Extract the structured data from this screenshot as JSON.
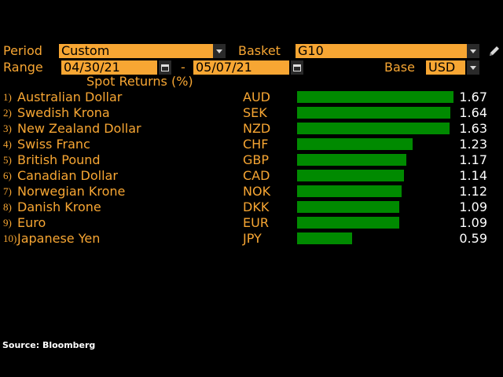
{
  "controls": {
    "period_label": "Period",
    "period_value": "Custom",
    "basket_label": "Basket",
    "basket_value": "G10",
    "range_label": "Range",
    "range_start": "04/30/21",
    "range_separator": "-",
    "range_end": "05/07/21",
    "base_label": "Base",
    "base_value": "USD"
  },
  "chart_title": "Spot Returns (%)",
  "source": "Source: Bloomberg",
  "colors": {
    "accent": "#f7a633",
    "bar": "#008a00",
    "value_text": "#ffffff",
    "background": "#000000"
  },
  "chart_data": {
    "type": "bar",
    "title": "Spot Returns (%)",
    "orientation": "horizontal",
    "rows": [
      {
        "rank": "1)",
        "name": "Australian Dollar",
        "code": "AUD",
        "value": 1.67,
        "label": "1.67"
      },
      {
        "rank": "2)",
        "name": "Swedish Krona",
        "code": "SEK",
        "value": 1.64,
        "label": "1.64"
      },
      {
        "rank": "3)",
        "name": "New Zealand Dollar",
        "code": "NZD",
        "value": 1.63,
        "label": "1.63"
      },
      {
        "rank": "4)",
        "name": "Swiss Franc",
        "code": "CHF",
        "value": 1.23,
        "label": "1.23"
      },
      {
        "rank": "5)",
        "name": "British Pound",
        "code": "GBP",
        "value": 1.17,
        "label": "1.17"
      },
      {
        "rank": "6)",
        "name": "Canadian Dollar",
        "code": "CAD",
        "value": 1.14,
        "label": "1.14"
      },
      {
        "rank": "7)",
        "name": "Norwegian Krone",
        "code": "NOK",
        "value": 1.12,
        "label": "1.12"
      },
      {
        "rank": "8)",
        "name": "Danish Krone",
        "code": "DKK",
        "value": 1.09,
        "label": "1.09"
      },
      {
        "rank": "9)",
        "name": "Euro",
        "code": "EUR",
        "value": 1.09,
        "label": "1.09"
      },
      {
        "rank": "10)",
        "name": "Japanese Yen",
        "code": "JPY",
        "value": 0.59,
        "label": "0.59"
      }
    ]
  }
}
